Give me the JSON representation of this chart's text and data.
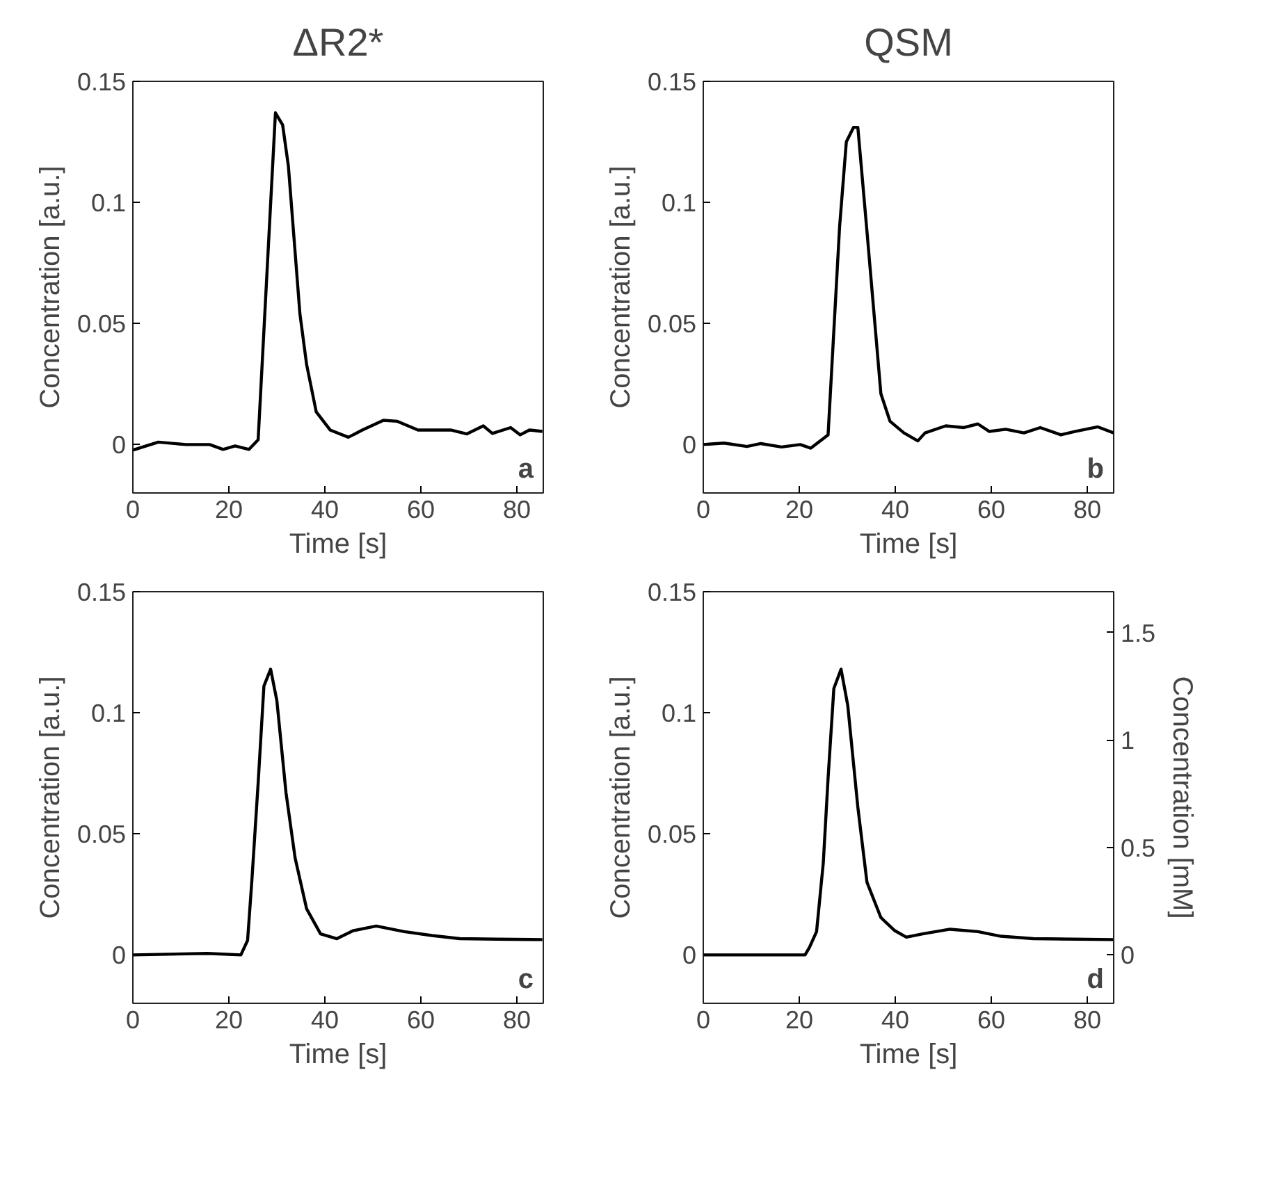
{
  "chart_data": [
    {
      "type": "line",
      "title": "ΔR2*",
      "xlabel": "Time [s]",
      "ylabel": "Concentration [a.u.]",
      "annotations": [
        "a"
      ],
      "xlim": [
        0,
        85.5
      ],
      "xticks": [
        0,
        20,
        40,
        60,
        80
      ],
      "ylim": [
        -0.02,
        0.15
      ],
      "yticks": [
        0,
        0.05,
        0.1,
        0.15
      ],
      "grid": false,
      "line_style": "solid",
      "x": [
        0,
        5.3,
        11.1,
        16,
        18.8,
        21.3,
        24.2,
        26.1,
        29.7,
        31.2,
        32.4,
        34.8,
        36.2,
        38.2,
        41.1,
        44.9,
        47.8,
        52.2,
        55.1,
        59.4,
        66.2,
        69.6,
        73,
        74.9,
        78.7,
        80.7,
        82.6,
        85.3
      ],
      "series": [
        {
          "color": "#000000",
          "values": [
            -0.0023,
            0.001,
            0,
            0,
            -0.002,
            -0.0006,
            -0.002,
            0.002,
            0.137,
            0.132,
            0.115,
            0.054,
            0.033,
            0.0135,
            0.006,
            0.003,
            0.006,
            0.01,
            0.0096,
            0.006,
            0.006,
            0.0044,
            0.0077,
            0.0046,
            0.007,
            0.004,
            0.006,
            0.0054
          ]
        }
      ]
    },
    {
      "type": "line",
      "title": "QSM",
      "xlabel": "Time [s]",
      "ylabel": "Concentration [a.u.]",
      "annotations": [
        "b"
      ],
      "xlim": [
        0,
        85.5
      ],
      "xticks": [
        0,
        20,
        40,
        60,
        80
      ],
      "ylim": [
        -0.02,
        0.15
      ],
      "yticks": [
        0,
        0.05,
        0.1,
        0.15
      ],
      "grid": false,
      "line_style": "solid",
      "x": [
        0,
        4.3,
        9.1,
        12,
        16.3,
        20.2,
        22.4,
        26,
        28.4,
        29.8,
        31.3,
        32.2,
        34.1,
        37,
        38.9,
        41.8,
        44.7,
        46.2,
        50.5,
        54.3,
        57.2,
        59.6,
        63,
        66.8,
        70.2,
        74.5,
        77.4,
        82.2,
        85.5
      ],
      "series": [
        {
          "color": "#000000",
          "values": [
            0,
            0.0006,
            -0.0008,
            0.0004,
            -0.001,
            0,
            -0.0015,
            0.004,
            0.09,
            0.125,
            0.131,
            0.131,
            0.088,
            0.021,
            0.0096,
            0.0048,
            0.0015,
            0.0048,
            0.0077,
            0.007,
            0.0085,
            0.0054,
            0.0063,
            0.0048,
            0.007,
            0.004,
            0.0054,
            0.0073,
            0.0048
          ]
        }
      ]
    },
    {
      "type": "line",
      "xlabel": "Time [s]",
      "ylabel": "Concentration [a.u.]",
      "annotations": [
        "c"
      ],
      "xlim": [
        0,
        85.5
      ],
      "xticks": [
        0,
        20,
        40,
        60,
        80
      ],
      "ylim": [
        -0.02,
        0.15
      ],
      "yticks": [
        0,
        0.05,
        0.1,
        0.15
      ],
      "grid": false,
      "line_style": "solid",
      "x": [
        0,
        15.5,
        22.5,
        23.9,
        24.8,
        26.1,
        27.3,
        28.7,
        30,
        31.9,
        33.8,
        36.2,
        39.1,
        42.5,
        45.9,
        50.7,
        56.5,
        62.3,
        68.1,
        75.8,
        85.3
      ],
      "series": [
        {
          "color": "#000000",
          "values": [
            0,
            0.0006,
            0,
            0.006,
            0.031,
            0.071,
            0.111,
            0.118,
            0.105,
            0.067,
            0.04,
            0.019,
            0.0087,
            0.0067,
            0.01,
            0.0119,
            0.0096,
            0.008,
            0.0067,
            0.0065,
            0.0063
          ]
        }
      ]
    },
    {
      "type": "line",
      "xlabel": "Time [s]",
      "ylabel": "Concentration [a.u.]",
      "y2label": "Concentration [mM]",
      "annotations": [
        "d"
      ],
      "xlim": [
        0,
        85.5
      ],
      "xticks": [
        0,
        20,
        40,
        60,
        80
      ],
      "ylim": [
        -0.02,
        0.15
      ],
      "yticks": [
        0,
        0.05,
        0.1,
        0.15
      ],
      "y2lim": [
        -0.225,
        1.69
      ],
      "y2ticks": [
        0,
        0.5,
        1,
        1.5
      ],
      "grid": false,
      "line_style": "solid",
      "x": [
        0,
        21.2,
        22.1,
        23.6,
        25,
        26,
        27.2,
        28.7,
        30.1,
        32.2,
        34.1,
        37,
        39.9,
        42.3,
        45.7,
        51.4,
        57.2,
        62,
        68.75,
        85.5
      ],
      "series": [
        {
          "color": "#000000",
          "values": [
            0,
            0,
            0.003,
            0.0096,
            0.038,
            0.073,
            0.11,
            0.118,
            0.103,
            0.061,
            0.03,
            0.0154,
            0.01,
            0.0073,
            0.0087,
            0.0106,
            0.0096,
            0.0077,
            0.0067,
            0.0063
          ]
        }
      ]
    }
  ]
}
